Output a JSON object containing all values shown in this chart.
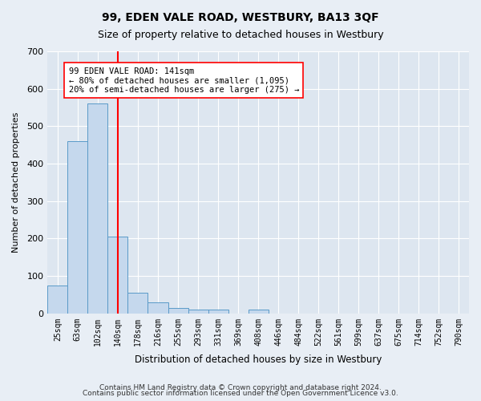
{
  "title": "99, EDEN VALE ROAD, WESTBURY, BA13 3QF",
  "subtitle": "Size of property relative to detached houses in Westbury",
  "xlabel": "Distribution of detached houses by size in Westbury",
  "ylabel": "Number of detached properties",
  "categories": [
    "25sqm",
    "63sqm",
    "102sqm",
    "140sqm",
    "178sqm",
    "216sqm",
    "255sqm",
    "293sqm",
    "331sqm",
    "369sqm",
    "408sqm",
    "446sqm",
    "484sqm",
    "522sqm",
    "561sqm",
    "599sqm",
    "637sqm",
    "675sqm",
    "714sqm",
    "752sqm",
    "790sqm"
  ],
  "bar_values": [
    75,
    460,
    560,
    205,
    55,
    30,
    15,
    10,
    10,
    0,
    10,
    0,
    0,
    0,
    0,
    0,
    0,
    0,
    0,
    0,
    0
  ],
  "bar_color": "#c5d8ed",
  "bar_edge_color": "#5a9ac8",
  "ylim": [
    0,
    700
  ],
  "yticks": [
    0,
    100,
    200,
    300,
    400,
    500,
    600,
    700
  ],
  "red_line_x": 3.0,
  "annotation_text": "99 EDEN VALE ROAD: 141sqm\n← 80% of detached houses are smaller (1,095)\n20% of semi-detached houses are larger (275) →",
  "bg_color": "#e8eef5",
  "plot_bg_color": "#dde6f0",
  "footer1": "Contains HM Land Registry data © Crown copyright and database right 2024.",
  "footer2": "Contains public sector information licensed under the Open Government Licence v3.0."
}
